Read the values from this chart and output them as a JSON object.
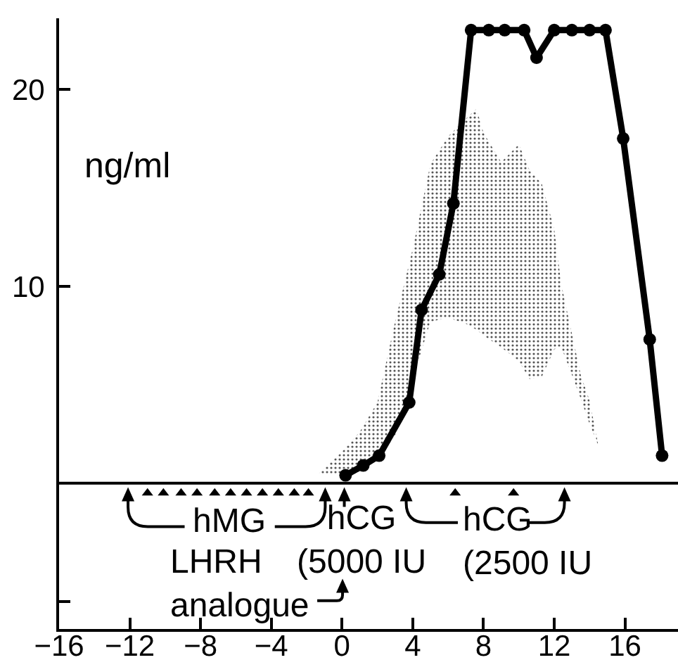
{
  "chart_data": {
    "type": "line",
    "ylabel": "ng/ml",
    "annotations": [
      "hMG",
      "hCG\n(5000 IU",
      "LHRH\nanalogue",
      "hCG\n(2500 IU"
    ],
    "series": [
      {
        "type": "area",
        "color": "#555555",
        "x": [
          -1.3,
          0,
          1,
          2,
          3,
          4,
          5,
          6,
          7,
          7.6,
          8,
          9,
          10,
          10.6,
          11.3,
          12,
          12.4,
          13,
          13.5,
          14,
          14.5
        ],
        "values": [
          null,
          null,
          null,
          null,
          null,
          null,
          null,
          null,
          null,
          null,
          null,
          null,
          null,
          null,
          null,
          null,
          null,
          null,
          null,
          null,
          null
        ],
        "lower": [
          0.5,
          0.4,
          0.7,
          1.2,
          2.4,
          5.3,
          8.2,
          8.4,
          8.1,
          7.8,
          7.5,
          6.9,
          6.2,
          5.3,
          5.4,
          6.8,
          6.9,
          5.5,
          4.3,
          3.0,
          1.9
        ],
        "upper": [
          0.5,
          1.6,
          2.6,
          4.1,
          8.2,
          11.9,
          16.2,
          17.6,
          18.5,
          19.0,
          17.8,
          16.3,
          17.2,
          15.9,
          15.2,
          12.9,
          10.1,
          7.6,
          5.5,
          4.2,
          1.9
        ]
      },
      {
        "type": "line",
        "color": "#000000",
        "marker": "circle",
        "x": [
          0.2,
          1.2,
          2.1,
          3.8,
          4.5,
          5.5,
          6.3,
          7.3,
          8.3,
          9.2,
          10.3,
          11.0,
          12.0,
          13.0,
          14.0,
          14.9,
          15.9,
          17.4,
          18.1
        ],
        "values": [
          0.4,
          0.9,
          1.4,
          4.1,
          8.8,
          10.6,
          14.2,
          23.0,
          23.0,
          23.0,
          23.0,
          21.6,
          23.0,
          23.0,
          23.0,
          23.0,
          17.5,
          7.3,
          1.4
        ]
      },
      {
        "type": "scatter",
        "color": "#000000",
        "marker": "triangle",
        "x": [
          -11.0,
          -10.1,
          -9.1,
          -8.2,
          -7.2,
          -6.3,
          -5.4,
          -4.5,
          -3.6,
          -2.7,
          -1.9,
          6.4,
          9.7
        ],
        "values": [
          -0.5,
          -0.5,
          -0.5,
          -0.5,
          -0.5,
          -0.5,
          -0.5,
          -0.5,
          -0.5,
          -0.5,
          -0.5,
          -0.5,
          -0.5
        ]
      }
    ],
    "xlim": [
      -16,
      19
    ],
    "xticks": [
      -16,
      -12,
      -8,
      -4,
      0,
      4,
      8,
      12,
      16
    ],
    "ylim": [
      -7.4,
      23.6
    ],
    "yticks": [
      {
        "value": -6,
        "label": null
      },
      10,
      20
    ],
    "ref_lines": [
      {
        "axis": "y",
        "value": 0
      }
    ],
    "grid": false
  }
}
